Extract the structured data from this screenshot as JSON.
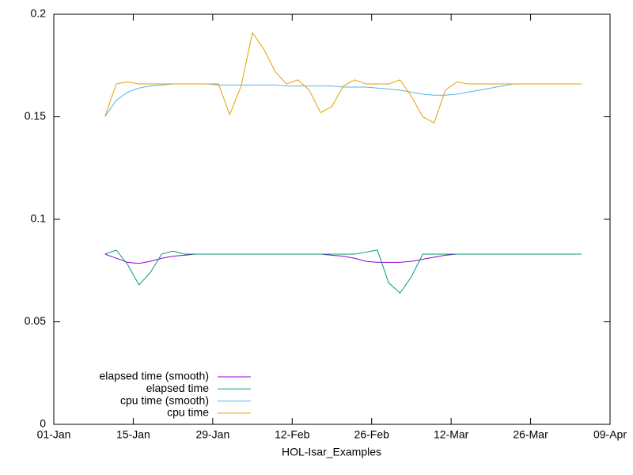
{
  "chart_data": {
    "type": "line",
    "xlabel": "HOL-Isar_Examples",
    "x": [
      "10-Jan",
      "12-Jan",
      "14-Jan",
      "16-Jan",
      "18-Jan",
      "20-Jan",
      "22-Jan",
      "24-Jan",
      "26-Jan",
      "28-Jan",
      "30-Jan",
      "01-Feb",
      "03-Feb",
      "05-Feb",
      "07-Feb",
      "09-Feb",
      "11-Feb",
      "13-Feb",
      "15-Feb",
      "17-Feb",
      "19-Feb",
      "21-Feb",
      "23-Feb",
      "25-Feb",
      "27-Feb",
      "01-Mar",
      "03-Mar",
      "05-Mar",
      "07-Mar",
      "09-Mar",
      "11-Mar",
      "13-Mar",
      "15-Mar",
      "17-Mar",
      "19-Mar",
      "21-Mar",
      "23-Mar",
      "25-Mar",
      "27-Mar",
      "29-Mar",
      "31-Mar",
      "02-Apr",
      "04-Apr"
    ],
    "series": [
      {
        "name": "elapsed time (smooth)",
        "color": "#9400d3",
        "values": [
          0.083,
          0.081,
          0.079,
          0.0785,
          0.0795,
          0.081,
          0.082,
          0.0825,
          0.083,
          0.083,
          0.083,
          0.083,
          0.083,
          0.083,
          0.083,
          0.083,
          0.083,
          0.083,
          0.083,
          0.083,
          0.0825,
          0.082,
          0.081,
          0.0795,
          0.079,
          0.079,
          0.079,
          0.0795,
          0.0805,
          0.0815,
          0.0825,
          0.083,
          null,
          null,
          null,
          null,
          null,
          null,
          null,
          null,
          null,
          null,
          null
        ]
      },
      {
        "name": "elapsed time",
        "color": "#009e73",
        "values": [
          0.083,
          0.085,
          0.078,
          0.068,
          0.074,
          0.083,
          0.0845,
          0.083,
          0.083,
          0.083,
          0.083,
          0.083,
          0.083,
          0.083,
          0.083,
          0.083,
          0.083,
          0.083,
          0.083,
          0.083,
          0.083,
          0.083,
          0.083,
          0.084,
          0.085,
          0.069,
          0.064,
          0.072,
          0.083,
          0.083,
          0.083,
          0.083,
          0.083,
          0.083,
          0.083,
          0.083,
          0.083,
          0.083,
          0.083,
          0.083,
          0.083,
          0.083,
          0.083
        ]
      },
      {
        "name": "cpu time (smooth)",
        "color": "#56b4e9",
        "values": [
          0.15,
          0.158,
          0.162,
          0.164,
          0.165,
          0.1655,
          0.166,
          0.166,
          0.166,
          0.166,
          0.1655,
          0.1655,
          0.1655,
          0.1655,
          0.1655,
          0.1655,
          0.165,
          0.165,
          0.165,
          0.165,
          0.165,
          0.1645,
          0.1645,
          0.1645,
          0.164,
          0.1635,
          0.163,
          0.162,
          0.161,
          0.1605,
          0.1605,
          0.161,
          0.162,
          0.163,
          0.164,
          0.165,
          0.166,
          null,
          null,
          null,
          null,
          null,
          null
        ]
      },
      {
        "name": "cpu time",
        "color": "#e69f00",
        "values": [
          0.15,
          0.166,
          0.167,
          0.166,
          0.166,
          0.166,
          0.166,
          0.166,
          0.166,
          0.166,
          0.166,
          0.151,
          0.165,
          0.191,
          0.183,
          0.172,
          0.166,
          0.168,
          0.163,
          0.152,
          0.155,
          0.165,
          0.168,
          0.166,
          0.166,
          0.166,
          0.168,
          0.16,
          0.15,
          0.147,
          0.163,
          0.167,
          0.166,
          0.166,
          0.166,
          0.166,
          0.166,
          0.166,
          0.166,
          0.166,
          0.166,
          0.166,
          0.166
        ]
      }
    ],
    "xlim": [
      "01-Jan",
      "09-Apr"
    ],
    "xticks": [
      "01-Jan",
      "15-Jan",
      "29-Jan",
      "12-Feb",
      "26-Feb",
      "12-Mar",
      "26-Mar",
      "09-Apr"
    ],
    "ylim": [
      0,
      0.2
    ],
    "yticks": [
      0,
      0.05,
      0.1,
      0.15,
      0.2
    ],
    "legend": "bottom-left"
  }
}
